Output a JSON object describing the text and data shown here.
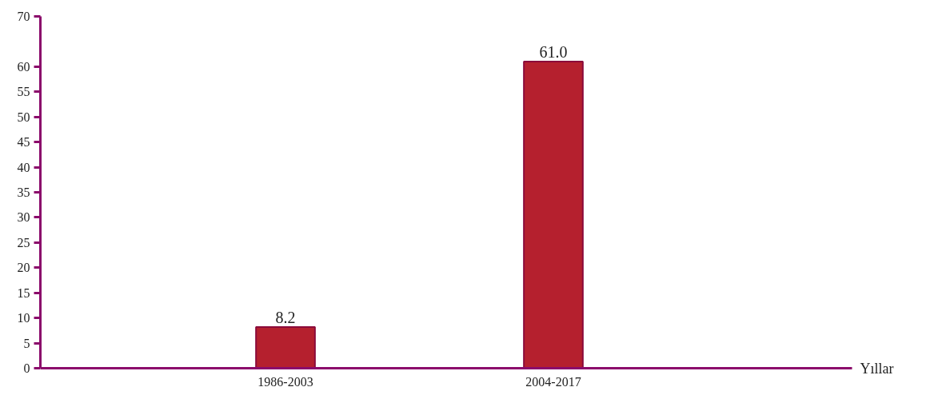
{
  "chart_data": {
    "type": "bar",
    "categories": [
      "1986-2003",
      "2004-2017"
    ],
    "values": [
      8.2,
      61.0
    ],
    "value_labels": [
      "8.2",
      "61.0"
    ],
    "color": "#b5202e",
    "xlabel": "Yıllar",
    "ylim": [
      0,
      70
    ],
    "yticks": [
      0,
      5,
      10,
      15,
      20,
      25,
      30,
      35,
      40,
      45,
      50,
      55,
      60,
      70
    ],
    "grid": false
  }
}
